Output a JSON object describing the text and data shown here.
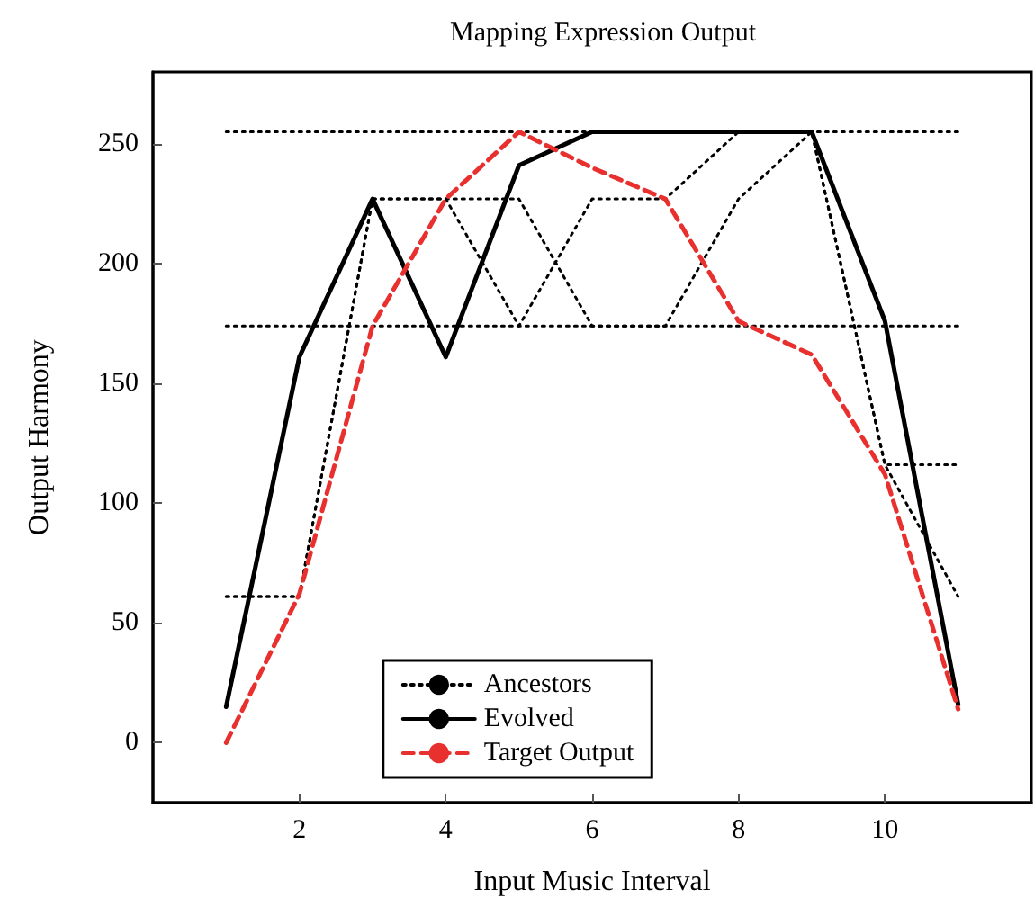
{
  "chart_data": {
    "type": "line",
    "title": "Mapping Expression Output",
    "xlabel": "Input Music Interval",
    "ylabel": "Output Harmony",
    "x": [
      1,
      2,
      3,
      4,
      5,
      6,
      7,
      8,
      9,
      10,
      11
    ],
    "xlim": [
      0,
      12
    ],
    "xticks": [
      2,
      4,
      6,
      8,
      10
    ],
    "ylim": [
      -25,
      280
    ],
    "yticks": [
      0,
      50,
      100,
      150,
      200,
      250
    ],
    "grid": false,
    "legend": "bottom",
    "marker": "none",
    "series": [
      {
        "name": "Ancestors",
        "color": "#000000",
        "line_style": "dotted",
        "values": [
          255,
          255,
          255,
          255,
          255,
          255,
          255,
          255,
          255,
          255,
          255
        ]
      },
      {
        "color": "#000000",
        "line_style": "dotted",
        "values": [
          174,
          174,
          174,
          174,
          174,
          174,
          174,
          174,
          174,
          174,
          174
        ]
      },
      {
        "color": "#000000",
        "line_style": "dotted",
        "values": [
          61,
          61,
          227,
          227,
          174,
          227,
          227,
          255,
          255,
          116,
          116
        ]
      },
      {
        "color": "#000000",
        "line_style": "dotted",
        "values": [
          61,
          61,
          227,
          227,
          227,
          174,
          174,
          227,
          255,
          116,
          61
        ]
      },
      {
        "name": "Evolved",
        "color": "#000000",
        "line_style": "solid",
        "values": [
          15,
          161,
          227,
          161,
          241,
          255,
          255,
          255,
          255,
          176,
          16
        ]
      },
      {
        "name": "Target Output",
        "color": "#e8312f",
        "line_style": "dashed",
        "values": [
          0,
          62,
          174,
          227,
          255,
          240,
          227,
          176,
          162,
          112,
          14
        ]
      }
    ]
  }
}
